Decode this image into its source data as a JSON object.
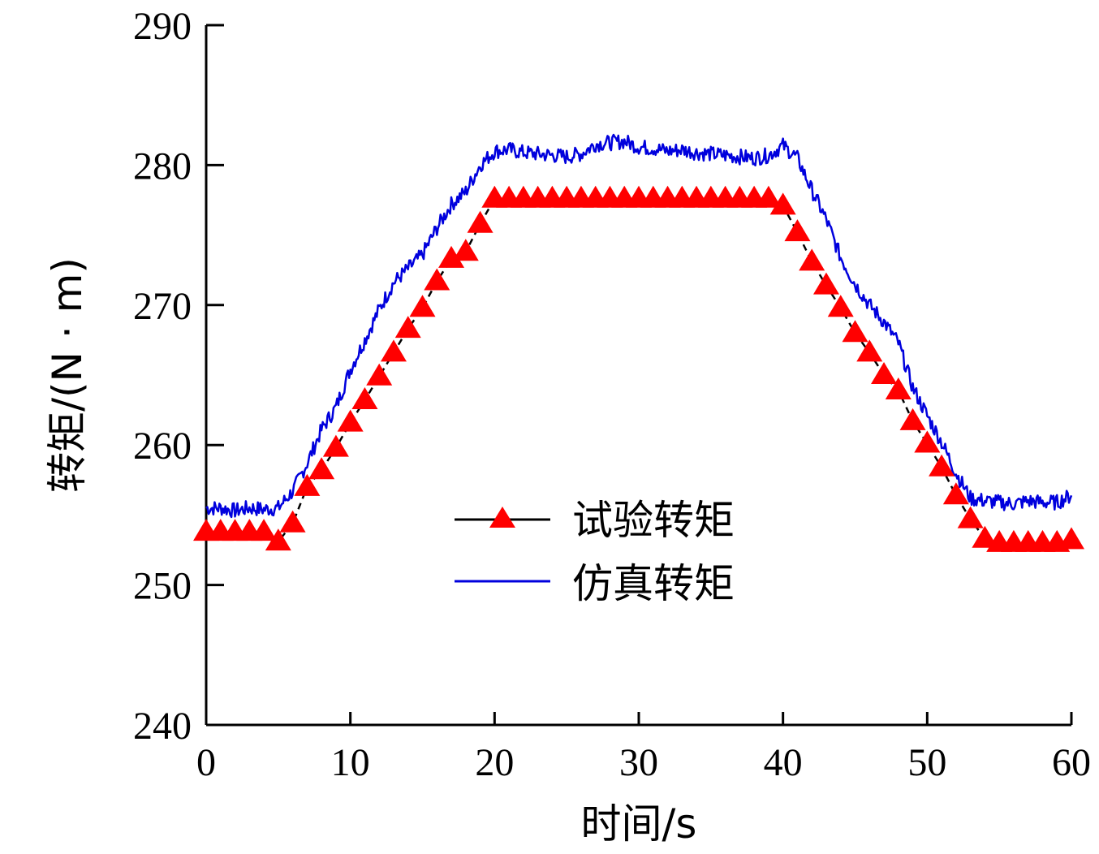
{
  "chart_data": {
    "type": "line",
    "xlabel": "时间/s",
    "ylabel": "转矩/(N · m)",
    "xlim": [
      0,
      60
    ],
    "ylim": [
      240,
      290
    ],
    "xticks": [
      "0",
      "10",
      "20",
      "30",
      "40",
      "50",
      "60"
    ],
    "yticks": [
      "240",
      "250",
      "260",
      "270",
      "280",
      "290"
    ],
    "colors": {
      "experimental": "#ff0000",
      "experimental_line": "#000000",
      "simulated": "#0000dd",
      "axis": "#000000"
    },
    "legend": {
      "placement": "center"
    },
    "series": [
      {
        "name": "试验转矩",
        "style": "dashed-black-with-red-triangles",
        "x": [
          0,
          1,
          2,
          3,
          4,
          5,
          6,
          7,
          8,
          9,
          10,
          11,
          12,
          13,
          14,
          15,
          16,
          17,
          18,
          19,
          20,
          21,
          22,
          23,
          24,
          25,
          26,
          27,
          28,
          29,
          30,
          31,
          32,
          33,
          34,
          35,
          36,
          37,
          38,
          39,
          40,
          41,
          42,
          43,
          44,
          45,
          46,
          47,
          48,
          49,
          50,
          51,
          52,
          53,
          54,
          55,
          56,
          57,
          58,
          59,
          60
        ],
        "values": [
          253.8,
          253.8,
          253.8,
          253.8,
          253.8,
          253.1,
          254.4,
          257.0,
          258.2,
          259.8,
          261.6,
          263.2,
          264.9,
          266.6,
          268.3,
          269.8,
          271.7,
          273.3,
          273.8,
          275.8,
          277.6,
          277.6,
          277.6,
          277.6,
          277.6,
          277.6,
          277.6,
          277.6,
          277.6,
          277.6,
          277.6,
          277.6,
          277.6,
          277.6,
          277.6,
          277.6,
          277.6,
          277.6,
          277.6,
          277.6,
          277.1,
          275.2,
          273.1,
          271.4,
          269.8,
          268.0,
          266.6,
          265.0,
          263.9,
          261.7,
          260.1,
          258.4,
          256.4,
          254.7,
          253.3,
          253.0,
          253.0,
          253.0,
          253.0,
          253.0,
          253.2
        ]
      },
      {
        "name": "仿真转矩",
        "style": "solid-blue",
        "x": [
          0,
          1,
          2,
          3,
          4,
          5,
          6,
          7,
          8,
          9,
          10,
          11,
          12,
          13,
          14,
          15,
          16,
          17,
          18,
          19,
          20,
          21,
          22,
          23,
          24,
          25,
          26,
          27,
          28,
          29,
          30,
          31,
          32,
          33,
          34,
          35,
          36,
          37,
          38,
          39,
          40,
          41,
          42,
          43,
          44,
          45,
          46,
          47,
          48,
          49,
          50,
          51,
          52,
          53,
          54,
          55,
          56,
          57,
          58,
          59,
          60
        ],
        "values": [
          255.5,
          255.5,
          255.3,
          255.5,
          255.4,
          255.5,
          256.7,
          258.7,
          261.1,
          262.7,
          265.4,
          267.5,
          269.7,
          271.6,
          272.6,
          273.6,
          275.5,
          277.2,
          278.1,
          280.0,
          281.0,
          281.1,
          280.9,
          280.8,
          280.7,
          280.6,
          280.8,
          281.5,
          281.6,
          281.7,
          281.3,
          281.2,
          281.0,
          281.1,
          280.9,
          280.8,
          280.7,
          280.6,
          280.5,
          280.7,
          281.4,
          280.5,
          278.2,
          276.1,
          273.4,
          271.5,
          270.0,
          268.8,
          267.3,
          264.1,
          262.1,
          260.2,
          258.0,
          256.2,
          256.0,
          255.9,
          255.8,
          256.0,
          255.9,
          255.9,
          256.4
        ]
      }
    ]
  }
}
